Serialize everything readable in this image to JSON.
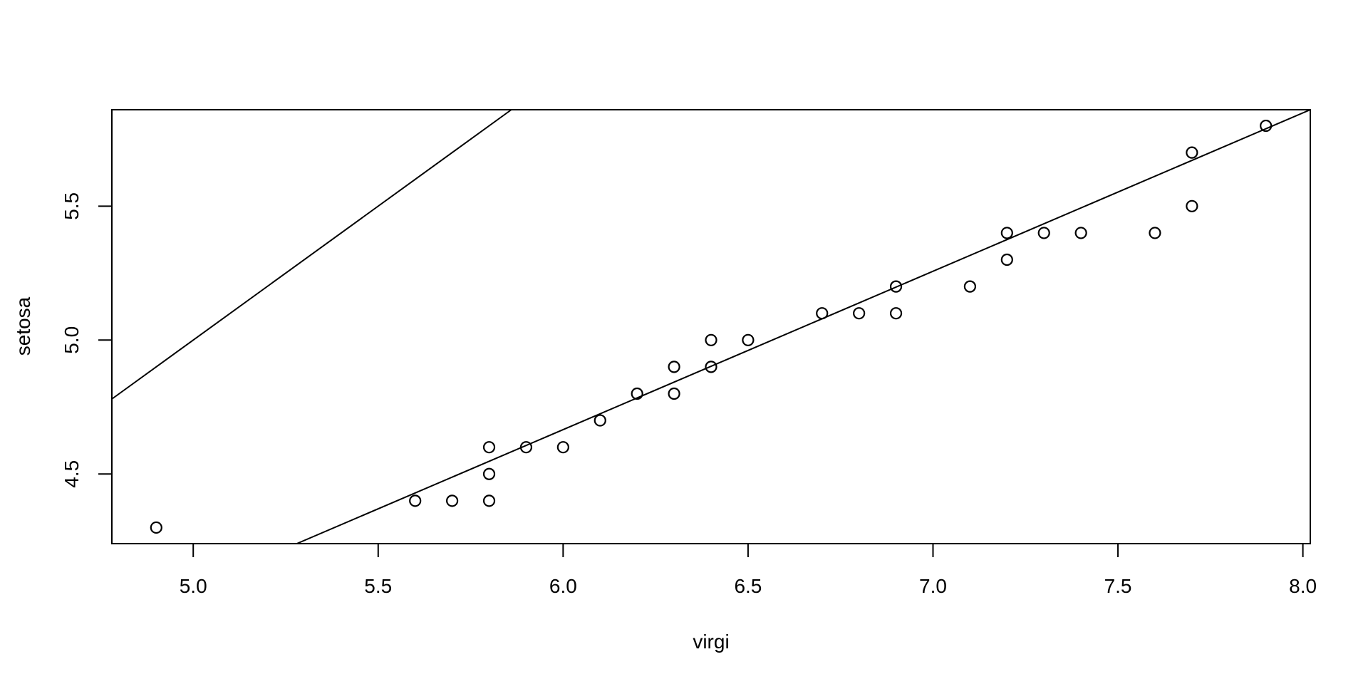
{
  "chart_data": {
    "type": "scatter",
    "title": "",
    "xlabel": "virgi",
    "ylabel": "setosa",
    "xlim": [
      4.78,
      8.02
    ],
    "ylim": [
      4.24,
      5.86
    ],
    "grid": false,
    "x_ticks": [
      5.0,
      5.5,
      6.0,
      6.5,
      7.0,
      7.5,
      8.0
    ],
    "x_tick_labels": [
      "5.0",
      "5.5",
      "6.0",
      "6.5",
      "7.0",
      "7.5",
      "8.0"
    ],
    "y_ticks": [
      4.5,
      5.0,
      5.5
    ],
    "y_tick_labels": [
      "4.5",
      "5.0",
      "5.5"
    ],
    "marker": {
      "shape": "open-circle",
      "radius_px": 7.5,
      "stroke_px": 2.2
    },
    "points": [
      [
        4.9,
        4.3
      ],
      [
        5.6,
        4.4
      ],
      [
        5.7,
        4.4
      ],
      [
        5.8,
        4.4
      ],
      [
        5.8,
        4.5
      ],
      [
        5.8,
        4.6
      ],
      [
        5.9,
        4.6
      ],
      [
        6.0,
        4.6
      ],
      [
        6.1,
        4.7
      ],
      [
        6.2,
        4.8
      ],
      [
        6.3,
        4.8
      ],
      [
        6.3,
        4.9
      ],
      [
        6.4,
        4.9
      ],
      [
        6.4,
        5.0
      ],
      [
        6.5,
        5.0
      ],
      [
        6.7,
        5.1
      ],
      [
        6.8,
        5.1
      ],
      [
        6.9,
        5.1
      ],
      [
        6.9,
        5.2
      ],
      [
        7.1,
        5.2
      ],
      [
        7.2,
        5.3
      ],
      [
        7.2,
        5.4
      ],
      [
        7.3,
        5.4
      ],
      [
        7.4,
        5.4
      ],
      [
        7.6,
        5.4
      ],
      [
        7.7,
        5.5
      ],
      [
        7.7,
        5.7
      ],
      [
        7.9,
        5.8
      ]
    ],
    "lines": [
      {
        "name": "identity-line",
        "x1": 4.78,
        "y1": 4.78,
        "x2": 5.86,
        "y2": 5.86
      },
      {
        "name": "qq-fit-line",
        "x1": 5.28,
        "y1": 4.24,
        "x2": 8.02,
        "y2": 5.86
      }
    ],
    "colors": {
      "foreground": "#000000",
      "background": "#ffffff"
    }
  }
}
